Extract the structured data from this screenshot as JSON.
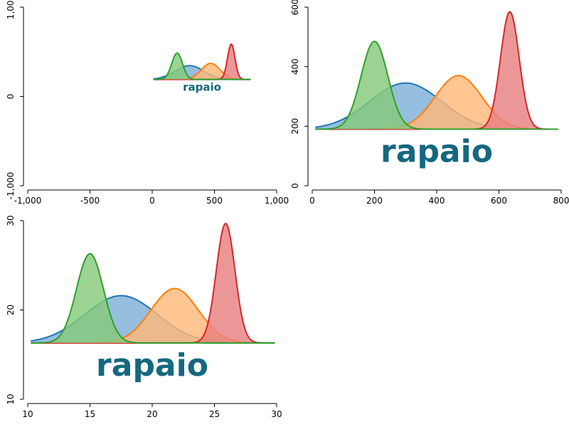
{
  "chart_data": [
    {
      "type": "area",
      "panel": "top-left",
      "xlim": [
        -1000,
        1000
      ],
      "ylim": [
        -1000,
        1000
      ],
      "xticks": [
        -1000,
        -500,
        0,
        500,
        1000
      ],
      "xtick_labels": [
        "-1,000",
        "-500",
        "0",
        "500",
        "1,000"
      ],
      "yticks": [
        -1000,
        0,
        1000
      ],
      "ytick_labels": [
        "-1,000",
        "0",
        "1,000"
      ],
      "baseline": 190,
      "logo_text": "rapaio",
      "series": [
        {
          "color": "#1f77b4",
          "fill": "#7fb0d8",
          "peak_x": 300,
          "peak_y": 345,
          "sigma": 115
        },
        {
          "color": "#ff7f0e",
          "fill": "#ffb87a",
          "peak_x": 470,
          "peak_y": 370,
          "sigma": 75
        },
        {
          "color": "#d62728",
          "fill": "#e88080",
          "peak_x": 635,
          "peak_y": 585,
          "sigma": 30
        },
        {
          "color": "#2ca02c",
          "fill": "#86c97a",
          "peak_x": 200,
          "peak_y": 485,
          "sigma": 43
        }
      ]
    },
    {
      "type": "area",
      "panel": "top-right",
      "xlim": [
        0,
        800
      ],
      "ylim": [
        0,
        600
      ],
      "xticks": [
        0,
        200,
        400,
        600,
        800
      ],
      "xtick_labels": [
        "0",
        "200",
        "400",
        "600",
        "800"
      ],
      "yticks": [
        0,
        200,
        400,
        600
      ],
      "ytick_labels": [
        "0",
        "200",
        "400",
        "600"
      ],
      "baseline": 190,
      "logo_text": "rapaio",
      "series": [
        {
          "color": "#1f77b4",
          "fill": "#7fb0d8",
          "peak_x": 300,
          "peak_y": 345,
          "sigma": 115
        },
        {
          "color": "#ff7f0e",
          "fill": "#ffb87a",
          "peak_x": 470,
          "peak_y": 370,
          "sigma": 75
        },
        {
          "color": "#d62728",
          "fill": "#e88080",
          "peak_x": 635,
          "peak_y": 585,
          "sigma": 30
        },
        {
          "color": "#2ca02c",
          "fill": "#86c97a",
          "peak_x": 200,
          "peak_y": 485,
          "sigma": 43
        }
      ]
    },
    {
      "type": "area",
      "panel": "bottom-left",
      "xlim": [
        10,
        30
      ],
      "ylim": [
        10,
        30
      ],
      "xticks": [
        10,
        15,
        20,
        25,
        30
      ],
      "xtick_labels": [
        "10",
        "15",
        "20",
        "25",
        "30"
      ],
      "yticks": [
        10,
        20,
        30
      ],
      "ytick_labels": [
        "10",
        "20",
        "30"
      ],
      "baseline": 16.3,
      "logo_text": "rapaio",
      "series": [
        {
          "color": "#1f77b4",
          "fill": "#7fb0d8",
          "peak_x": 17.5,
          "peak_y": 21.6,
          "sigma": 2.9
        },
        {
          "color": "#ff7f0e",
          "fill": "#ffb87a",
          "peak_x": 21.8,
          "peak_y": 22.4,
          "sigma": 1.9
        },
        {
          "color": "#d62728",
          "fill": "#e88080",
          "peak_x": 25.9,
          "peak_y": 29.7,
          "sigma": 0.75
        },
        {
          "color": "#2ca02c",
          "fill": "#86c97a",
          "peak_x": 15.0,
          "peak_y": 26.3,
          "sigma": 1.08
        }
      ]
    }
  ]
}
